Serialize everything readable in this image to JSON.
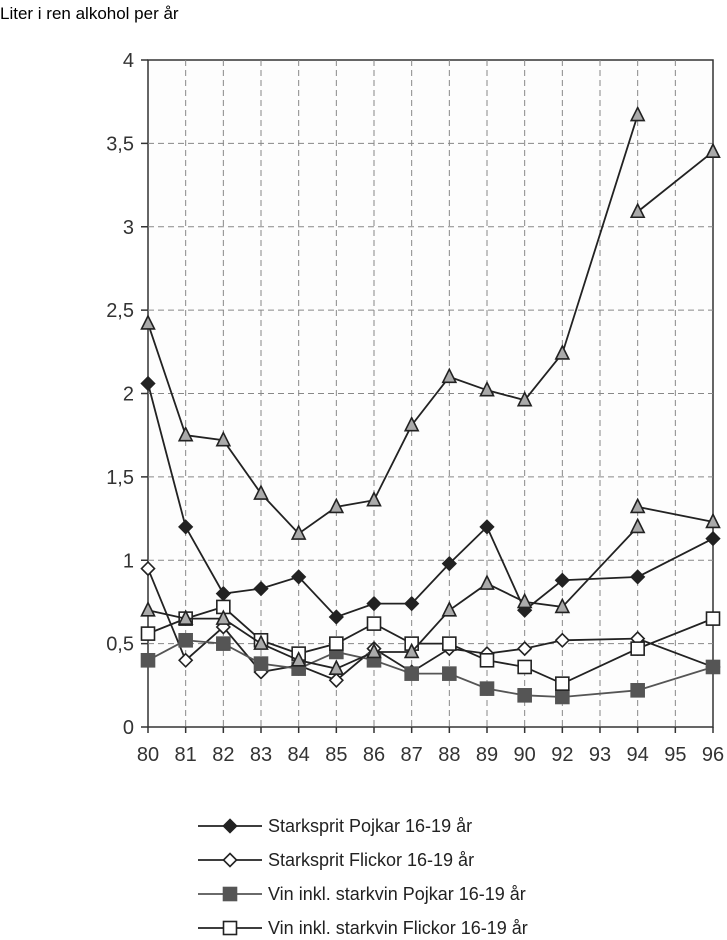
{
  "chart_data": {
    "type": "line",
    "title": "",
    "ylabel": "Liter i ren alkohol per år",
    "xlabel": "",
    "categories": [
      "80",
      "81",
      "82",
      "83",
      "84",
      "85",
      "86",
      "87",
      "88",
      "89",
      "90",
      "92",
      "93",
      "94",
      "95",
      "96"
    ],
    "y_ticks": [
      "0",
      "0,5",
      "1",
      "1,5",
      "2",
      "2,5",
      "3",
      "3,5",
      "4"
    ],
    "ylim": [
      0,
      4
    ],
    "grid": true,
    "legend_position": "bottom",
    "series": [
      {
        "name": "Starksprit Pojkar 16-19 år",
        "marker": "diamond-filled",
        "color": "#222222",
        "values": [
          2.06,
          1.2,
          0.8,
          0.83,
          0.9,
          0.66,
          0.74,
          0.74,
          0.98,
          1.2,
          0.7,
          0.88,
          null,
          0.9,
          null,
          1.13
        ]
      },
      {
        "name": "Starksprit Flickor 16-19 år",
        "marker": "diamond-open",
        "color": "#222222",
        "values": [
          0.95,
          0.4,
          0.6,
          0.33,
          0.37,
          0.28,
          0.47,
          0.33,
          0.47,
          0.44,
          0.47,
          0.52,
          null,
          0.53,
          null,
          0.36
        ]
      },
      {
        "name": "Vin inkl. starkvin Pojkar 16-19 år",
        "marker": "square-filled",
        "color": "#555555",
        "values": [
          0.4,
          0.52,
          0.5,
          0.38,
          0.35,
          0.45,
          0.4,
          0.32,
          0.32,
          0.23,
          0.19,
          0.18,
          null,
          0.22,
          null,
          0.36
        ]
      },
      {
        "name": "Vin inkl. starkvin Flickor 16-19 år",
        "marker": "square-open",
        "color": "#222222",
        "values": [
          0.56,
          0.65,
          0.72,
          0.52,
          0.44,
          0.5,
          0.62,
          0.5,
          0.5,
          0.4,
          0.36,
          0.26,
          null,
          0.47,
          null,
          0.65
        ]
      },
      {
        "name": "",
        "marker": "triangle-filled",
        "color": "#222222",
        "values": [
          2.42,
          1.75,
          1.72,
          1.4,
          1.16,
          1.32,
          1.36,
          1.81,
          2.1,
          2.02,
          1.96,
          2.24,
          null,
          3.67,
          null,
          null
        ]
      },
      {
        "name": "",
        "marker": "triangle-filled",
        "color": "#222222",
        "values": [
          null,
          null,
          null,
          null,
          null,
          null,
          null,
          null,
          null,
          null,
          null,
          null,
          null,
          3.09,
          null,
          3.45
        ]
      },
      {
        "name": "",
        "marker": "triangle-filled",
        "color": "#222222",
        "values": [
          0.7,
          0.65,
          0.65,
          0.5,
          0.4,
          0.35,
          0.45,
          0.45,
          0.7,
          0.86,
          0.75,
          0.72,
          null,
          1.2,
          null,
          null
        ]
      },
      {
        "name": "",
        "marker": "triangle-filled",
        "color": "#222222",
        "values": [
          null,
          null,
          null,
          null,
          null,
          null,
          null,
          null,
          null,
          null,
          null,
          null,
          null,
          1.32,
          null,
          1.23
        ]
      }
    ]
  }
}
